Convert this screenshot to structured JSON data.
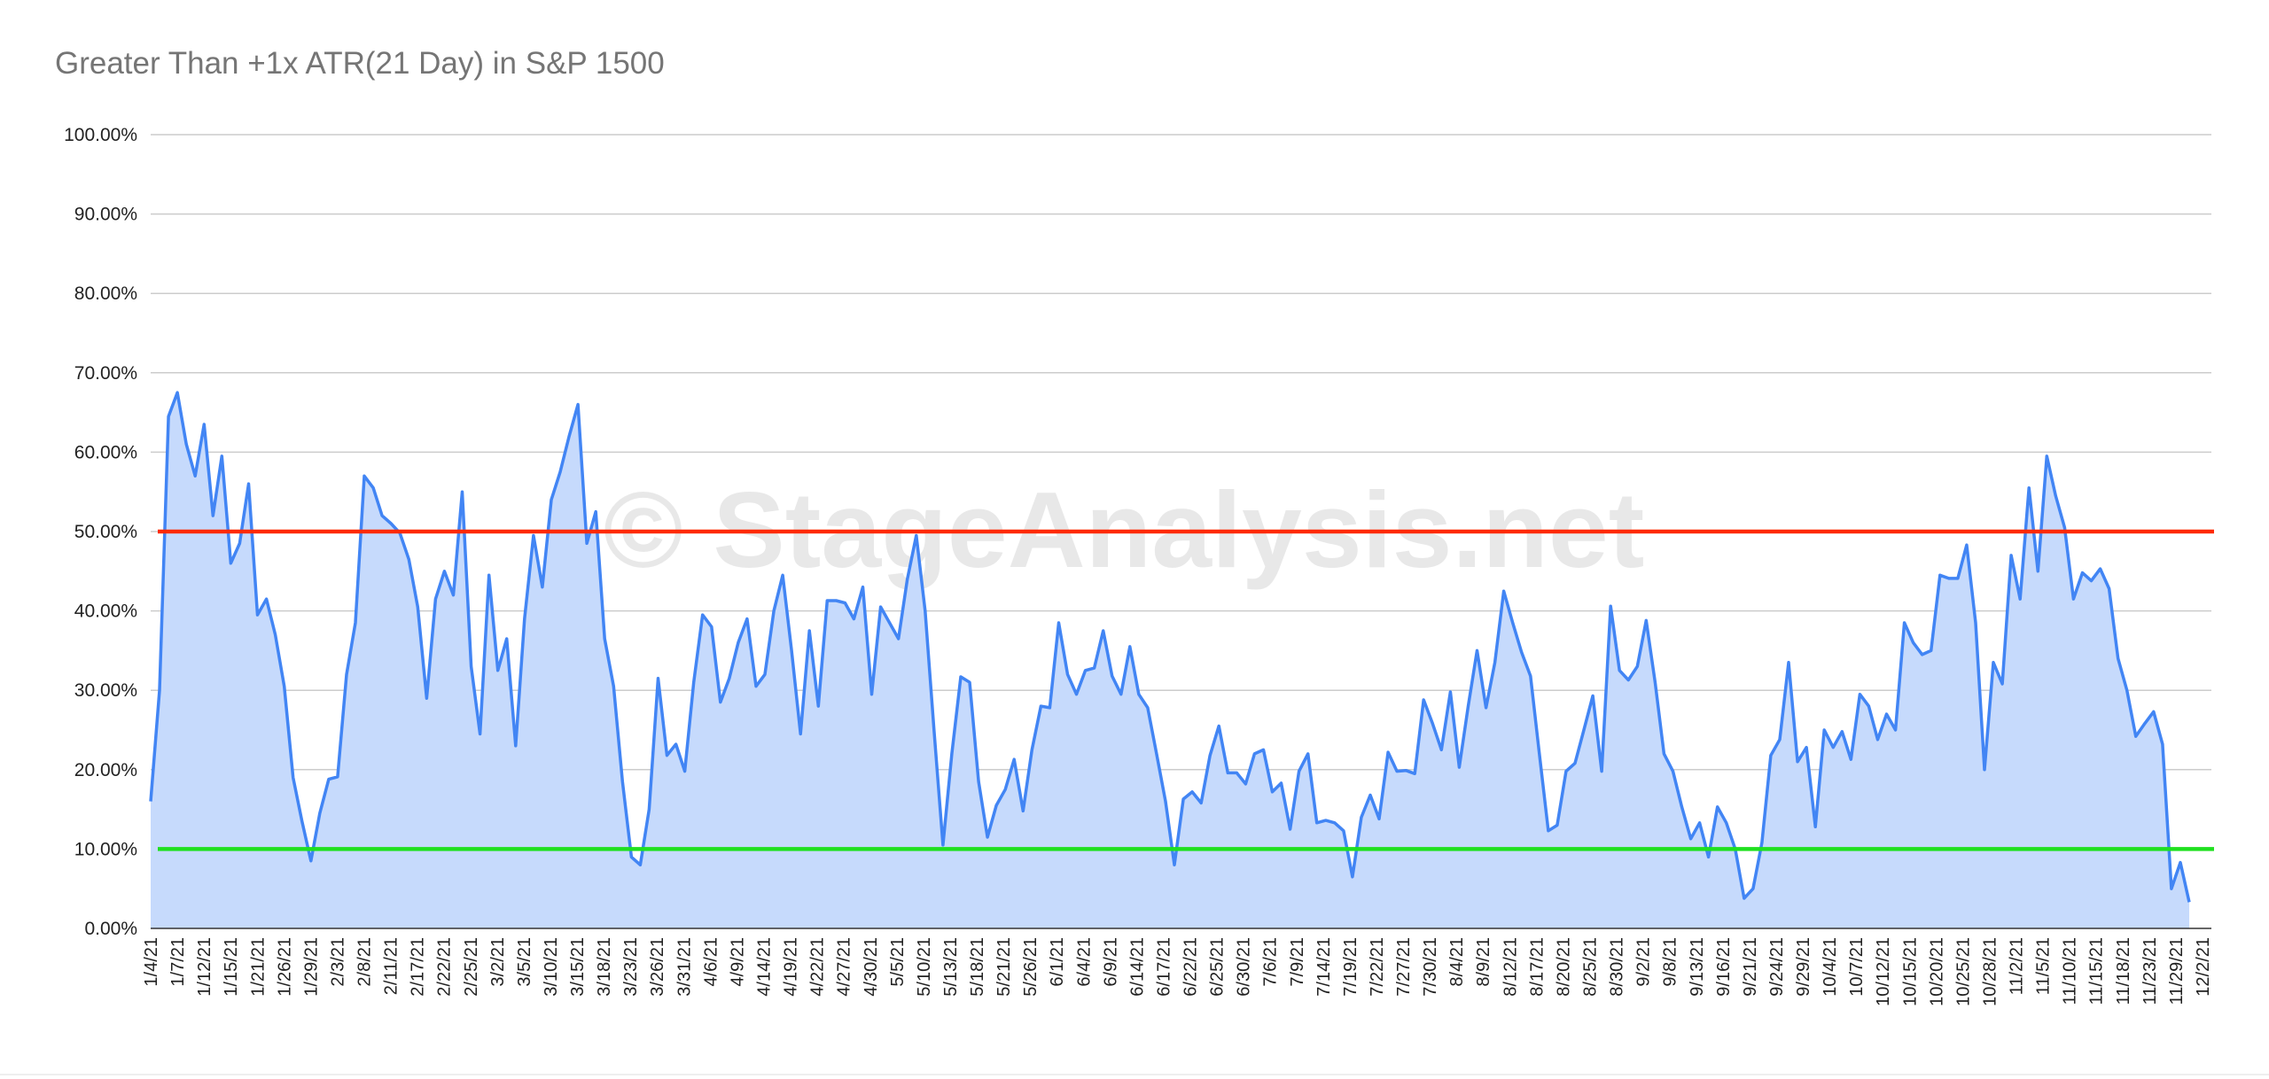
{
  "chart_data": {
    "type": "area",
    "title": "Greater Than +1x ATR(21 Day) in S&P 1500",
    "xlabel": "",
    "ylabel": "",
    "ylim": [
      0,
      100
    ],
    "y_ticks": [
      "0.00%",
      "10.00%",
      "20.00%",
      "30.00%",
      "40.00%",
      "50.00%",
      "60.00%",
      "70.00%",
      "80.00%",
      "90.00%",
      "100.00%"
    ],
    "grid": true,
    "x_tick_labels": [
      "1/4/21",
      "1/7/21",
      "1/12/21",
      "1/15/21",
      "1/21/21",
      "1/26/21",
      "1/29/21",
      "2/3/21",
      "2/8/21",
      "2/11/21",
      "2/17/21",
      "2/22/21",
      "2/25/21",
      "3/2/21",
      "3/5/21",
      "3/10/21",
      "3/15/21",
      "3/18/21",
      "3/23/21",
      "3/26/21",
      "3/31/21",
      "4/6/21",
      "4/9/21",
      "4/14/21",
      "4/19/21",
      "4/22/21",
      "4/27/21",
      "4/30/21",
      "5/5/21",
      "5/10/21",
      "5/13/21",
      "5/18/21",
      "5/21/21",
      "5/26/21",
      "6/1/21",
      "6/4/21",
      "6/9/21",
      "6/14/21",
      "6/17/21",
      "6/22/21",
      "6/25/21",
      "6/30/21",
      "7/6/21",
      "7/9/21",
      "7/14/21",
      "7/19/21",
      "7/22/21",
      "7/27/21",
      "7/30/21",
      "8/4/21",
      "8/9/21",
      "8/12/21",
      "8/17/21",
      "8/20/21",
      "8/25/21",
      "8/30/21",
      "9/2/21",
      "9/8/21",
      "9/13/21",
      "9/16/21",
      "9/21/21",
      "9/24/21",
      "9/29/21",
      "10/4/21",
      "10/7/21",
      "10/12/21",
      "10/15/21",
      "10/20/21",
      "10/25/21",
      "10/28/21",
      "11/2/21",
      "11/5/21",
      "11/10/21",
      "11/15/21",
      "11/18/21",
      "11/23/21",
      "11/29/21",
      "12/2/21"
    ],
    "series": [
      {
        "name": "Greater Than +1x ATR(21 Day)",
        "color": "#4285f4",
        "fill": "#c6dafc",
        "values": [
          16,
          30,
          64.5,
          67.5,
          61,
          57,
          63.5,
          52,
          59.5,
          46,
          48.5,
          56,
          39.5,
          41.5,
          37,
          30.5,
          19,
          13.5,
          8.5,
          14.5,
          18.8,
          19.1,
          32,
          38.5,
          57,
          55.5,
          52,
          51,
          49.8,
          46.5,
          40.5,
          29,
          41.5,
          45,
          42,
          55,
          33,
          24.5,
          44.5,
          32.5,
          36.5,
          23,
          39,
          49.5,
          43,
          54,
          57.5,
          62,
          66,
          48.5,
          52.5,
          36.5,
          30.5,
          18.5,
          9,
          8,
          15,
          31.5,
          21.8,
          23.2,
          19.8,
          31,
          39.5,
          38,
          28.5,
          31.5,
          36,
          39,
          30.5,
          32,
          40,
          44.5,
          35,
          24.5,
          37.5,
          28,
          41.3,
          41.3,
          41,
          39,
          43,
          29.5,
          40.5,
          38.5,
          36.5,
          44,
          49.5,
          40,
          25,
          10.5,
          22,
          31.7,
          31,
          18.5,
          11.5,
          15.5,
          17.5,
          21.3,
          14.8,
          22.5,
          28,
          27.8,
          38.5,
          32,
          29.5,
          32.5,
          32.8,
          37.5,
          31.8,
          29.5,
          35.5,
          29.5,
          27.8,
          22,
          16,
          8,
          16.3,
          17.2,
          15.8,
          21.8,
          25.5,
          19.6,
          19.6,
          18.2,
          22,
          22.5,
          17.2,
          18.3,
          12.5,
          19.8,
          22,
          13.3,
          13.6,
          13.3,
          12.3,
          6.5,
          14,
          16.8,
          13.8,
          22.2,
          19.8,
          19.9,
          19.5,
          28.8,
          25.8,
          22.5,
          29.8,
          20.3,
          28,
          35,
          27.8,
          33.5,
          42.5,
          38.5,
          34.8,
          31.8,
          22,
          12.3,
          13,
          19.8,
          20.8,
          25,
          29.3,
          19.8,
          40.6,
          32.5,
          31.3,
          33,
          38.8,
          31,
          22,
          19.8,
          15.3,
          11.3,
          13.3,
          9,
          15.3,
          13.3,
          10,
          3.8,
          5,
          10.8,
          21.8,
          23.8,
          33.5,
          21,
          22.8,
          12.8,
          25,
          22.8,
          24.8,
          21.3,
          29.5,
          28,
          23.8,
          27,
          25,
          38.5,
          36,
          34.5,
          35,
          44.5,
          44.1,
          44.1,
          48.3,
          38.5,
          20,
          33.5,
          30.8,
          47,
          41.5,
          55.5,
          45,
          59.5,
          54.5,
          50.5,
          41.5,
          44.8,
          43.8,
          45.3,
          42.8,
          34,
          30,
          24.2,
          25.8,
          27.3,
          23.2,
          5,
          8.3,
          3.3
        ]
      }
    ],
    "reference_lines": [
      {
        "name": "upper-threshold",
        "value": 50,
        "color": "#ff2a00"
      },
      {
        "name": "lower-threshold",
        "value": 10,
        "color": "#1ee01e"
      }
    ],
    "watermark": "© StageAnalysis.net",
    "legend": "none"
  }
}
